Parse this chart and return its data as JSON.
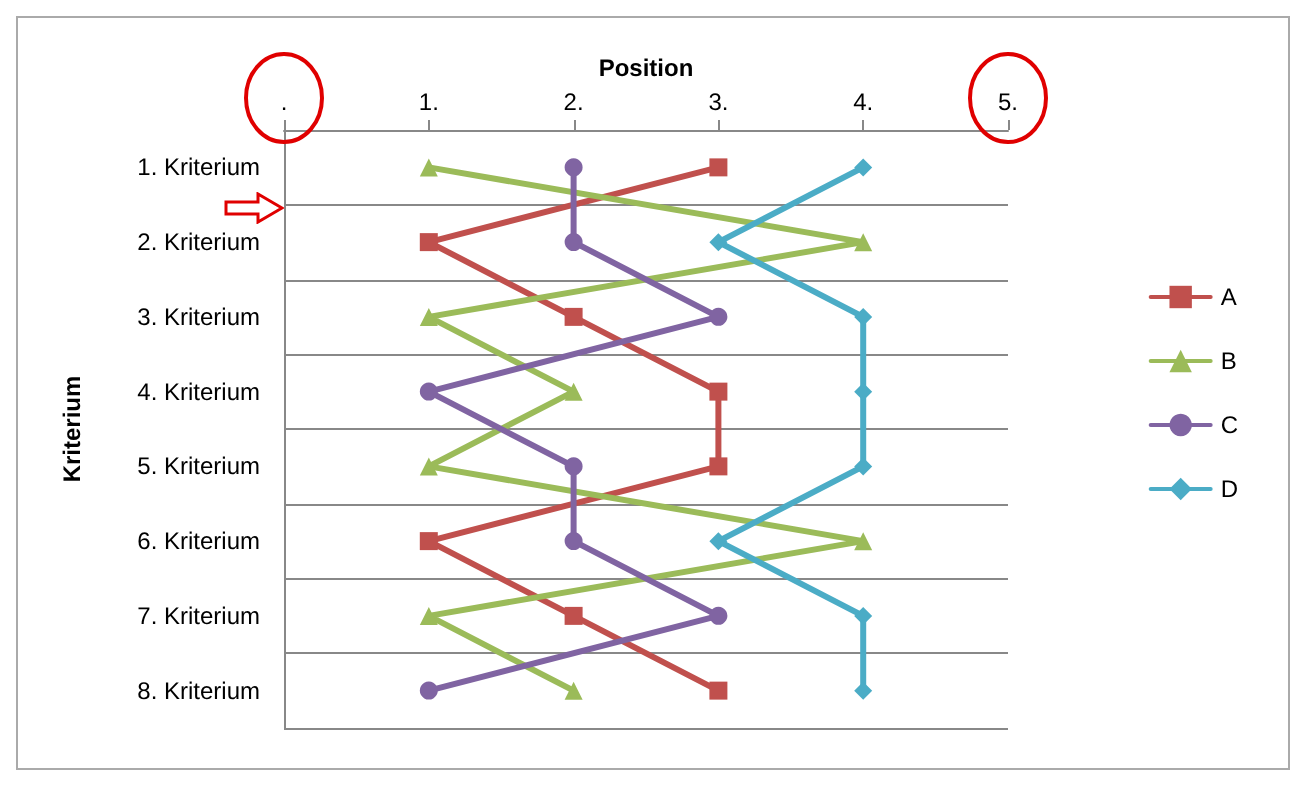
{
  "chart_data": {
    "type": "line",
    "xlabel": "Position",
    "ylabel": "Kriterium",
    "categories": [
      "1. Kriterium",
      "2. Kriterium",
      "3. Kriterium",
      "4. Kriterium",
      "5. Kriterium",
      "6. Kriterium",
      "7. Kriterium",
      "8. Kriterium"
    ],
    "orientation": "horizontal",
    "xlim": [
      0,
      5
    ],
    "xticks": [
      {
        "value": 0,
        "label": "."
      },
      {
        "value": 1,
        "label": "1."
      },
      {
        "value": 2,
        "label": "2."
      },
      {
        "value": 3,
        "label": "3."
      },
      {
        "value": 4,
        "label": "4."
      },
      {
        "value": 5,
        "label": "5."
      }
    ],
    "series": [
      {
        "name": "A",
        "color": "#c0504d",
        "marker": "square",
        "values": [
          3,
          1,
          2,
          3,
          3,
          1,
          2,
          3
        ]
      },
      {
        "name": "B",
        "color": "#9bbb59",
        "marker": "triangle",
        "values": [
          1,
          4,
          1,
          2,
          1,
          4,
          1,
          2
        ]
      },
      {
        "name": "C",
        "color": "#8064a2",
        "marker": "circle",
        "values": [
          2,
          2,
          3,
          1,
          2,
          2,
          3,
          1
        ]
      },
      {
        "name": "D",
        "color": "#4bacc6",
        "marker": "diamond",
        "values": [
          4,
          3,
          4,
          4,
          4,
          3,
          4,
          4
        ]
      }
    ],
    "grid": "y",
    "legend": "right",
    "line_style": "solid"
  }
}
